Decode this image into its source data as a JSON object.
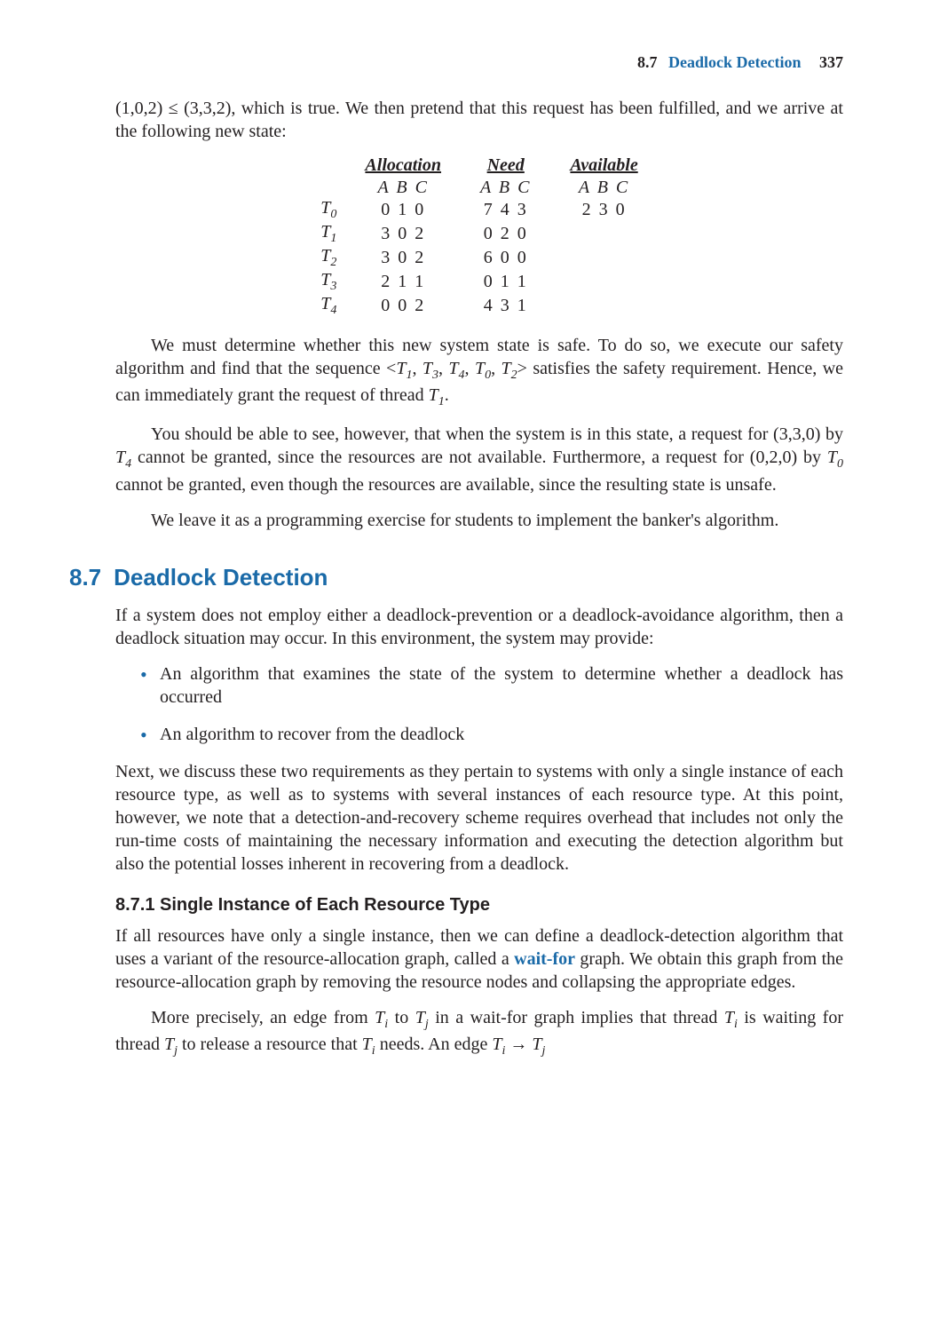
{
  "runhead": {
    "secnum": "8.7",
    "sectitle": "Deadlock Detection",
    "pageno": "337"
  },
  "intro_para": "(1,0,2) ≤ (3,3,2), which is true. We then pretend that this request has been fulfilled, and we arrive at the following new state:",
  "alloc_table": {
    "headers": [
      "Allocation",
      "Need",
      "Available"
    ],
    "abc": [
      "A B C",
      "A B C",
      "A B C"
    ],
    "rows": [
      {
        "label_base": "T",
        "label_sub": "0",
        "cells": [
          "0 1 0",
          "7 4 3",
          "2 3 0"
        ]
      },
      {
        "label_base": "T",
        "label_sub": "1",
        "cells": [
          "3 0 2",
          "0 2 0",
          ""
        ]
      },
      {
        "label_base": "T",
        "label_sub": "2",
        "cells": [
          "3 0 2",
          "6 0 0",
          ""
        ]
      },
      {
        "label_base": "T",
        "label_sub": "3",
        "cells": [
          "2 1 1",
          "0 1 1",
          ""
        ]
      },
      {
        "label_base": "T",
        "label_sub": "4",
        "cells": [
          "0 0 2",
          "4 3 1",
          ""
        ]
      }
    ]
  },
  "para_safe_1a": "We must determine whether this new system state is safe. To do so, we execute our safety algorithm and find that the sequence <",
  "seq_items": [
    {
      "b": "T",
      "s": "1"
    },
    {
      "b": "T",
      "s": "3"
    },
    {
      "b": "T",
      "s": "4"
    },
    {
      "b": "T",
      "s": "0"
    },
    {
      "b": "T",
      "s": "2"
    }
  ],
  "para_safe_1b": "> satisfies the safety requirement. Hence, we can immediately grant the request of thread ",
  "thread_T1_base": "T",
  "thread_T1_sub": "1",
  "period": ".",
  "para_safe_2a": "You should be able to see, however, that when the system is in this state, a request for (3,3,0) by ",
  "T4_base": "T",
  "T4_sub": "4",
  "para_safe_2b": " cannot be granted, since the resources are not available. Furthermore, a request for (0,2,0) by ",
  "T0_base": "T",
  "T0_sub": "0",
  "para_safe_2c": " cannot be granted, even though the resources are available, since the resulting state is unsafe.",
  "para_safe_3": "We leave it as a programming exercise for students to implement the banker's algorithm.",
  "section87_num": "8.7",
  "section87_title": "Deadlock Detection",
  "para87_1": "If a system does not employ either a deadlock-prevention or a deadlock-avoidance algorithm, then a deadlock situation may occur. In this environment, the system may provide:",
  "bullet1": "An algorithm that examines the state of the system to determine whether a deadlock has occurred",
  "bullet2": "An algorithm to recover from the deadlock",
  "para87_2": "Next, we discuss these two requirements as they pertain to systems with only a single instance of each resource type, as well as to systems with several instances of each resource type. At this point, however, we note that a detection-and-recovery scheme requires overhead that includes not only the run-time costs of maintaining the necessary information and executing the detection algorithm but also the potential losses inherent in recovering from a deadlock.",
  "subsection_title": "8.7.1  Single Instance of Each Resource Type",
  "para871_1a": "If all resources have only a single instance, then we can define a deadlock-detection algorithm that uses a variant of the resource-allocation graph, called a ",
  "waitfor_term": "wait-for",
  "para871_1b": " graph. We obtain this graph from the resource-allocation graph by removing the resource nodes and collapsing the appropriate edges.",
  "para871_2a": "More precisely, an edge from ",
  "Ti_base": "T",
  "Ti_sub": "i",
  "to_word": " to ",
  "Tj_base": "T",
  "Tj_sub": "j",
  "para871_2b": " in a wait-for graph implies that thread ",
  "para871_2c": " is waiting for thread ",
  "para871_2d": " to release a resource that ",
  "para871_2e": " needs. An edge ",
  "arrow": " → "
}
